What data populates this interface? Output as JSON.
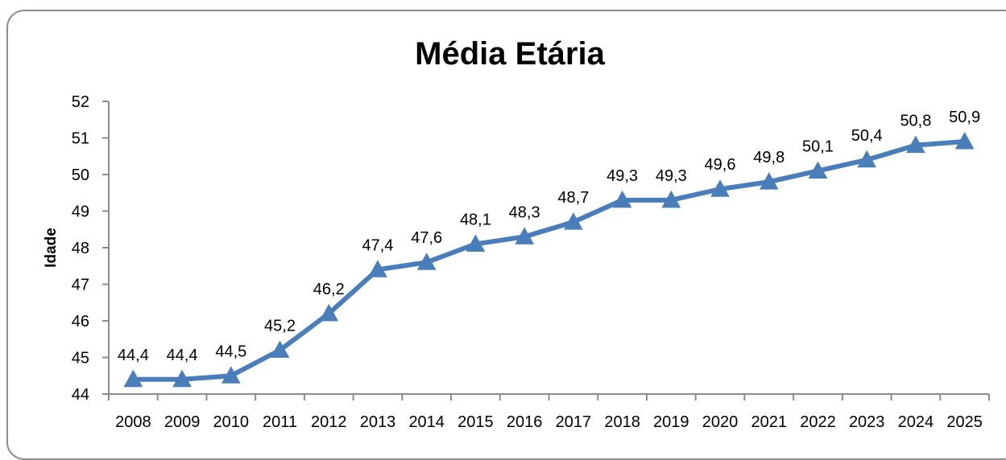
{
  "chart_data": {
    "type": "line",
    "title": "Média Etária",
    "xlabel": "",
    "ylabel": "Idade",
    "ylim": [
      44,
      52
    ],
    "yticks": [
      "44",
      "45",
      "46",
      "47",
      "48",
      "49",
      "50",
      "51",
      "52"
    ],
    "categories": [
      "2008",
      "2009",
      "2010",
      "2011",
      "2012",
      "2013",
      "2014",
      "2015",
      "2016",
      "2017",
      "2018",
      "2019",
      "2020",
      "2021",
      "2022",
      "2023",
      "2024",
      "2025"
    ],
    "series": [
      {
        "values": [
          44.4,
          44.4,
          44.5,
          45.2,
          46.2,
          47.4,
          47.6,
          48.1,
          48.3,
          48.7,
          49.3,
          49.3,
          49.6,
          49.8,
          50.1,
          50.4,
          50.8,
          50.9
        ],
        "data_labels": [
          "44,4",
          "44,4",
          "44,5",
          "45,2",
          "46,2",
          "47,4",
          "47,6",
          "48,1",
          "48,3",
          "48,7",
          "49,3",
          "49,3",
          "49,6",
          "49,8",
          "50,1",
          "50,4",
          "50,8",
          "50,9"
        ],
        "color": "#4a7ebb",
        "marker": "triangle"
      }
    ],
    "grid": false,
    "legend": "none"
  }
}
